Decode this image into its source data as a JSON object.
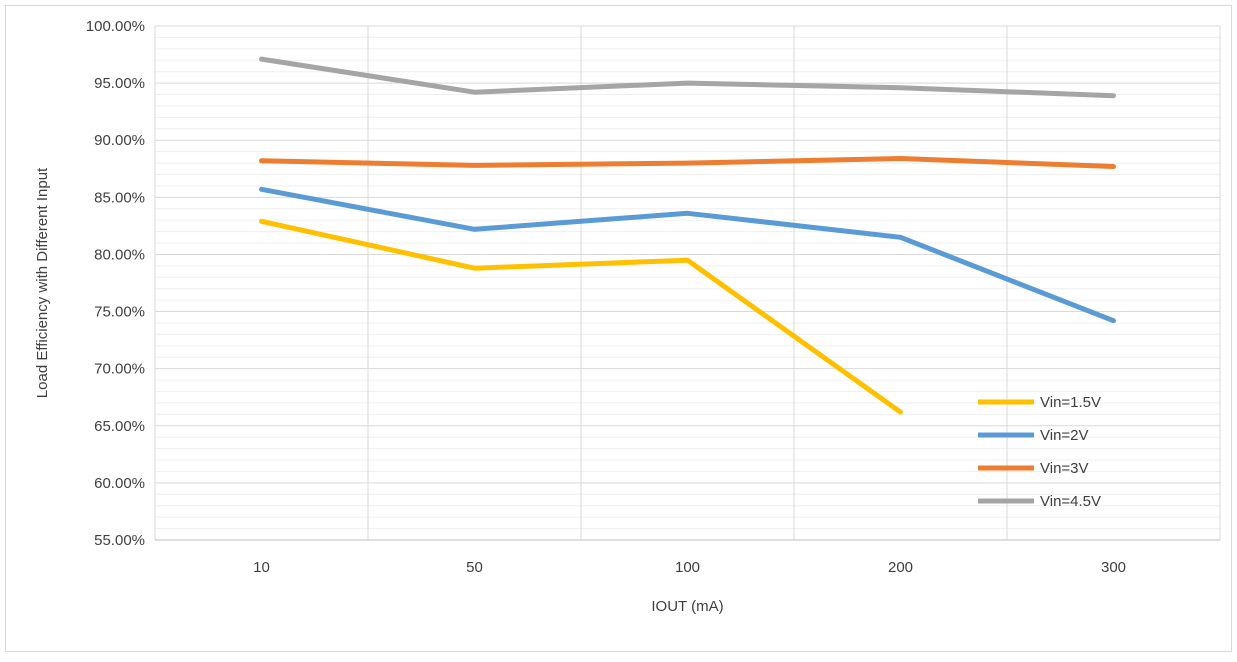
{
  "chart_data": {
    "type": "line",
    "title": "",
    "xlabel": "IOUT (mA)",
    "ylabel": "Load Efficiency with Different Input",
    "categories": [
      "10",
      "50",
      "100",
      "200",
      "300"
    ],
    "ylim": [
      55,
      100
    ],
    "y_ticks": [
      "55.00%",
      "60.00%",
      "65.00%",
      "70.00%",
      "75.00%",
      "80.00%",
      "85.00%",
      "90.00%",
      "95.00%",
      "100.00%"
    ],
    "grid": true,
    "legend_position": "bottom-right",
    "series": [
      {
        "name": "Vin=1.5V",
        "color": "#FFC000",
        "values": [
          82.9,
          78.8,
          79.5,
          66.2,
          null
        ]
      },
      {
        "name": "Vin=2V",
        "color": "#5B9BD5",
        "values": [
          85.7,
          82.2,
          83.6,
          81.5,
          74.2
        ]
      },
      {
        "name": "Vin=3V",
        "color": "#ED7D31",
        "values": [
          88.2,
          87.8,
          88.0,
          88.4,
          87.7
        ]
      },
      {
        "name": "Vin=4.5V",
        "color": "#A5A5A5",
        "values": [
          97.1,
          94.2,
          95.0,
          94.6,
          93.9
        ]
      }
    ]
  }
}
